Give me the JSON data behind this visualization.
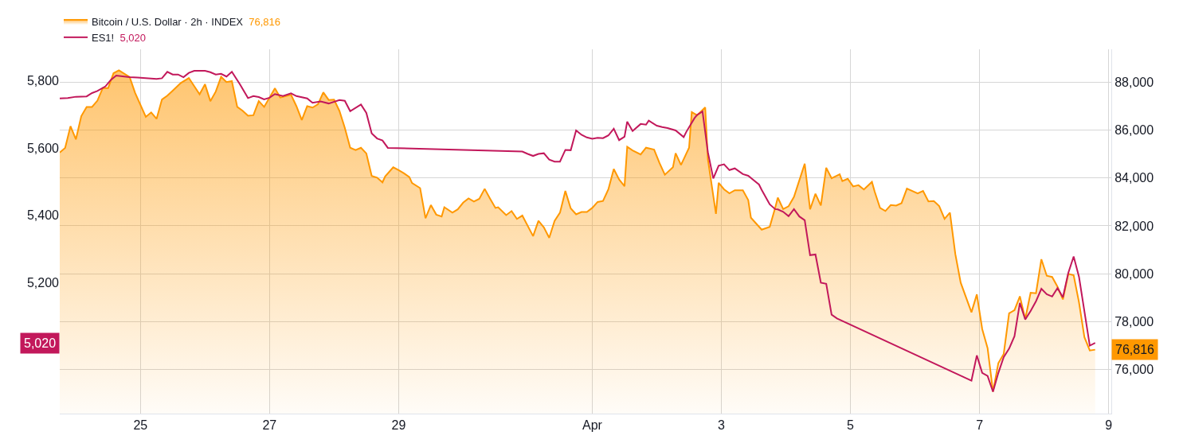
{
  "chart_data": {
    "type": "line",
    "xlim": [
      "--03-23T18:00",
      "--04-09T01:00"
    ],
    "xticks": [
      {
        "value": "--03-25",
        "label": "25"
      },
      {
        "value": "--03-27",
        "label": "27"
      },
      {
        "value": "--03-29",
        "label": "29"
      },
      {
        "value": "--04-01",
        "label": "Apr"
      },
      {
        "value": "--04-03",
        "label": "3"
      },
      {
        "value": "--04-05",
        "label": "5"
      },
      {
        "value": "--04-07",
        "label": "7"
      },
      {
        "value": "--04-09",
        "label": "9"
      }
    ],
    "ylim": [
      4810,
      5893
    ],
    "yticks": [
      {
        "value": 5200,
        "label": "5,200"
      },
      {
        "value": 5400,
        "label": "5,400"
      },
      {
        "value": 5600,
        "label": "5,600"
      },
      {
        "value": 5800,
        "label": "5,800"
      }
    ],
    "y2lim": [
      74140,
      89390
    ],
    "y2ticks": [
      {
        "value": 76000,
        "label": "76,000"
      },
      {
        "value": 78000,
        "label": "78,000"
      },
      {
        "value": 80000,
        "label": "80,000"
      },
      {
        "value": 82000,
        "label": "82,000"
      },
      {
        "value": 84000,
        "label": "84,000"
      },
      {
        "value": 86000,
        "label": "86,000"
      },
      {
        "value": 88000,
        "label": "88,000"
      }
    ],
    "grid": true,
    "legend": "top left",
    "annotations": [
      "76,816",
      "5,020"
    ],
    "series": [
      {
        "name": "Bitcoin / U.S. Dollar · 2h · INDEX",
        "type": "area",
        "axis": "y2",
        "color": "#ff9800",
        "x": [
          "--03-23T18:00",
          "--03-23T20:00",
          "--03-23T22:00",
          "--03-24T00:00",
          "--03-24T02:00",
          "--03-24T04:00",
          "--03-24T06:00",
          "--03-24T08:00",
          "--03-24T10:00",
          "--03-24T12:00",
          "--03-24T14:00",
          "--03-24T16:00",
          "--03-24T20:00",
          "--03-24T22:00",
          "--03-25T02:00",
          "--03-25T04:00",
          "--03-25T06:00",
          "--03-25T08:00",
          "--03-25T10:00",
          "--03-25T12:00",
          "--03-25T15:00",
          "--03-25T18:00",
          "--03-25T22:00",
          "--03-26T00:00",
          "--03-26T02:00",
          "--03-26T04:00",
          "--03-26T06:00",
          "--03-26T08:00",
          "--03-26T10:00",
          "--03-26T12:00",
          "--03-26T14:00",
          "--03-26T16:00",
          "--03-26T18:00",
          "--03-26T20:00",
          "--03-26T22:00",
          "--03-27T02:00",
          "--03-27T04:00",
          "--03-27T08:00",
          "--03-27T10:00",
          "--03-27T12:00",
          "--03-27T14:00",
          "--03-27T16:00",
          "--03-27T18:00",
          "--03-27T20:00",
          "--03-27T22:00",
          "--03-28T00:00",
          "--03-28T02:00",
          "--03-28T04:00",
          "--03-28T06:00",
          "--03-28T08:00",
          "--03-28T10:00",
          "--03-28T12:00",
          "--03-28T14:00",
          "--03-28T16:00",
          "--03-28T18:00",
          "--03-28T19:00",
          "--03-28T22:00",
          "--03-29T00:00",
          "--03-29T02:00",
          "--03-29T04:00",
          "--03-29T05:00",
          "--03-29T08:00",
          "--03-29T10:00",
          "--03-29T12:00",
          "--03-29T14:00",
          "--03-29T16:00",
          "--03-29T17:00",
          "--03-29T20:00",
          "--03-29T22:00",
          "--03-30T00:00",
          "--03-30T02:00",
          "--03-30T04:00",
          "--03-30T06:00",
          "--03-30T08:00",
          "--03-30T10:00",
          "--03-30T12:00",
          "--03-30T13:00",
          "--03-30T16:00",
          "--03-30T18:00",
          "--03-30T20:00",
          "--03-30T22:00",
          "--03-31T02:00",
          "--03-31T04:00",
          "--03-31T06:00",
          "--03-31T08:00",
          "--03-31T10:00",
          "--03-31T12:00",
          "--03-31T14:00",
          "--03-31T16:00",
          "--03-31T18:00",
          "--03-31T20:00",
          "--03-31T22:00",
          "--04-01T00:00",
          "--04-01T02:00",
          "--04-01T04:00",
          "--04-01T06:00",
          "--04-01T08:00",
          "--04-01T10:00",
          "--04-01T12:00",
          "--04-01T13:00",
          "--04-01T15:00",
          "--04-01T18:00",
          "--04-01T20:00",
          "--04-01T23:00",
          "--04-02T01:00",
          "--04-02T03:00",
          "--04-02T06:00",
          "--04-02T07:00",
          "--04-02T09:00",
          "--04-02T12:00",
          "--04-02T13:00",
          "--04-02T15:00",
          "--04-02T18:00",
          "--04-02T19:00",
          "--04-02T22:00",
          "--04-02T23:00",
          "--04-03T01:00",
          "--04-03T03:00",
          "--04-03T05:00",
          "--04-03T08:00",
          "--04-03T10:00",
          "--04-03T11:00",
          "--04-03T15:00",
          "--04-03T18:00",
          "--04-03T20:00",
          "--04-03T21:00",
          "--04-03T23:00",
          "--04-04T01:00",
          "--04-04T03:00",
          "--04-04T07:00",
          "--04-04T09:00",
          "--04-04T11:00",
          "--04-04T13:00",
          "--04-04T15:00",
          "--04-04T17:00",
          "--04-04T20:00",
          "--04-04T21:00",
          "--04-04T23:00",
          "--04-05T01:00",
          "--04-05T03:00",
          "--04-05T05:00",
          "--04-05T08:00",
          "--04-05T09:00",
          "--04-05T11:00",
          "--04-05T13:00",
          "--04-05T15:00",
          "--04-05T17:00",
          "--04-05T19:00",
          "--04-05T21:00",
          "--04-06T01:00",
          "--04-06T03:00",
          "--04-06T05:00",
          "--04-06T07:00",
          "--04-06T09:00",
          "--04-06T11:00",
          "--04-06T13:00",
          "--04-06T15:00",
          "--04-06T17:00",
          "--04-06T21:00",
          "--04-06T23:00",
          "--04-07T01:00",
          "--04-07T03:00",
          "--04-07T05:00",
          "--04-07T07:00",
          "--04-07T09:00",
          "--04-07T11:00",
          "--04-07T13:00",
          "--04-07T15:00",
          "--04-07T17:00",
          "--04-07T19:00",
          "--04-07T21:00",
          "--04-07T23:00",
          "--04-08T01:00",
          "--04-08T03:00",
          "--04-08T05:00",
          "--04-08T07:00",
          "--04-08T09:00",
          "--04-08T11:00",
          "--04-08T13:00",
          "--04-08T15:00",
          "--04-08T17:00",
          "--04-08T19:00"
        ],
        "values": [
          85070,
          85260,
          86170,
          85620,
          86590,
          86980,
          86980,
          87240,
          87770,
          87770,
          88390,
          88510,
          88230,
          87570,
          86560,
          86750,
          86480,
          87290,
          87450,
          87660,
          87980,
          88190,
          87510,
          87930,
          87220,
          87620,
          88240,
          88020,
          88060,
          86980,
          86820,
          86610,
          86630,
          87220,
          86980,
          87760,
          87370,
          87490,
          87010,
          86430,
          87010,
          86950,
          87090,
          87590,
          87270,
          87280,
          86810,
          86100,
          85270,
          85170,
          85270,
          85030,
          84090,
          84020,
          83820,
          84070,
          84450,
          84330,
          84200,
          84040,
          83790,
          83580,
          82320,
          82870,
          82470,
          82390,
          82780,
          82550,
          82690,
          82970,
          83150,
          83020,
          83130,
          83550,
          83140,
          82750,
          82780,
          82450,
          82620,
          82290,
          82430,
          81570,
          82210,
          81940,
          81500,
          82210,
          82550,
          83460,
          82730,
          82480,
          82580,
          82580,
          82750,
          83000,
          83040,
          83530,
          84380,
          83940,
          83660,
          85310,
          85160,
          84990,
          85270,
          85190,
          84630,
          84140,
          84450,
          85040,
          84550,
          85270,
          86760,
          86630,
          86960,
          84780,
          82500,
          83800,
          83530,
          83360,
          83490,
          83490,
          83080,
          82340,
          81840,
          81960,
          82750,
          83180,
          82700,
          82820,
          83210,
          84600,
          82690,
          83340,
          82850,
          84430,
          83990,
          84160,
          83870,
          83970,
          83650,
          83700,
          83520,
          83840,
          83440,
          82750,
          82620,
          82870,
          82850,
          82950,
          83560,
          83360,
          83460,
          83020,
          83040,
          82830,
          82290,
          82550,
          80820,
          79620,
          78380,
          79130,
          77680,
          76880,
          75060,
          76250,
          76640,
          78340,
          78470,
          79050,
          78100,
          79200,
          79180,
          80600,
          79910,
          79860,
          79450,
          78920,
          79990,
          79930,
          78790,
          77340,
          76780,
          76816
        ]
      },
      {
        "name": "ES1!",
        "color": "#c2185b",
        "x": [
          "--03-23T18:00",
          "--03-23T21:00",
          "--03-24T00:00",
          "--03-24T04:00",
          "--03-24T06:00",
          "--03-24T08:00",
          "--03-24T11:00",
          "--03-24T13:00",
          "--03-24T15:00",
          "--03-24T18:00",
          "--03-24T20:00",
          "--03-24T23:00",
          "--03-25T02:00",
          "--03-25T06:00",
          "--03-25T08:00",
          "--03-25T10:00",
          "--03-25T12:00",
          "--03-25T14:00",
          "--03-25T16:00",
          "--03-25T18:00",
          "--03-25T20:00",
          "--03-26T00:00",
          "--03-26T02:00",
          "--03-26T04:00",
          "--03-26T06:00",
          "--03-26T08:00",
          "--03-26T10:00",
          "--03-26T13:00",
          "--03-26T16:00",
          "--03-26T18:00",
          "--03-26T20:00",
          "--03-26T22:00",
          "--03-27T00:00",
          "--03-27T02:00",
          "--03-27T05:00",
          "--03-27T08:00",
          "--03-27T10:00",
          "--03-27T14:00",
          "--03-27T16:00",
          "--03-27T19:00",
          "--03-27T22:00",
          "--03-28T02:00",
          "--03-28T04:00",
          "--03-28T06:00",
          "--03-28T10:00",
          "--03-28T12:00",
          "--03-28T14:00",
          "--03-28T16:00",
          "--03-28T18:00",
          "--03-28T20:00",
          "--03-30T22:00",
          "--03-31T00:00",
          "--03-31T02:00",
          "--03-31T04:00",
          "--03-31T06:00",
          "--03-31T08:00",
          "--03-31T10:00",
          "--03-31T12:00",
          "--03-31T14:00",
          "--03-31T16:00",
          "--03-31T18:00",
          "--03-31T20:00",
          "--03-31T22:00",
          "--04-01T00:00",
          "--04-01T02:00",
          "--04-01T04:00",
          "--04-01T06:00",
          "--04-01T08:00",
          "--04-01T10:00",
          "--04-01T12:00",
          "--04-01T13:00",
          "--04-01T15:00",
          "--04-01T18:00",
          "--04-01T20:00",
          "--04-01T21:00",
          "--04-02T00:00",
          "--04-02T02:00",
          "--04-02T04:00",
          "--04-02T07:00",
          "--04-02T10:00",
          "--04-02T11:00",
          "--04-02T14:00",
          "--04-02T15:00",
          "--04-02T17:00",
          "--04-02T19:00",
          "--04-02T21:00",
          "--04-02T23:00",
          "--04-03T01:00",
          "--04-03T03:00",
          "--04-03T05:00",
          "--04-03T08:00",
          "--04-03T10:00",
          "--04-03T12:00",
          "--04-03T14:00",
          "--04-03T15:00",
          "--04-03T18:00",
          "--04-03T20:00",
          "--04-03T21:00",
          "--04-03T23:00",
          "--04-04T01:00",
          "--04-04T03:00",
          "--04-04T05:00",
          "--04-04T07:00",
          "--04-04T09:00",
          "--04-04T11:00",
          "--04-04T13:00",
          "--04-04T15:00",
          "--04-04T17:00",
          "--04-04T19:00",
          "--04-06T21:00",
          "--04-06T23:00",
          "--04-07T01:00",
          "--04-07T03:00",
          "--04-07T05:00",
          "--04-07T07:00",
          "--04-07T09:00",
          "--04-07T11:00",
          "--04-07T13:00",
          "--04-07T15:00",
          "--04-07T17:00",
          "--04-07T19:00",
          "--04-07T21:00",
          "--04-07T23:00",
          "--04-08T01:00",
          "--04-08T03:00",
          "--04-08T05:00",
          "--04-08T07:00",
          "--04-08T09:00",
          "--04-08T11:00",
          "--04-08T13:00",
          "--04-08T17:00",
          "--04-08T19:00"
        ],
        "values": [
          5747,
          5748,
          5752,
          5753,
          5763,
          5769,
          5783,
          5802,
          5815,
          5812,
          5810,
          5809,
          5807,
          5805,
          5807,
          5826,
          5818,
          5818,
          5810,
          5823,
          5829,
          5829,
          5825,
          5818,
          5820,
          5812,
          5826,
          5789,
          5748,
          5754,
          5751,
          5744,
          5749,
          5760,
          5754,
          5762,
          5754,
          5747,
          5734,
          5738,
          5732,
          5742,
          5740,
          5709,
          5729,
          5704,
          5643,
          5628,
          5622,
          5600,
          5589,
          5582,
          5576,
          5582,
          5584,
          5565,
          5559,
          5559,
          5594,
          5593,
          5652,
          5639,
          5631,
          5627,
          5630,
          5629,
          5637,
          5657,
          5623,
          5633,
          5678,
          5650,
          5671,
          5669,
          5681,
          5666,
          5662,
          5659,
          5652,
          5632,
          5648,
          5688,
          5698,
          5708,
          5587,
          5509,
          5547,
          5551,
          5534,
          5539,
          5522,
          5517,
          5504,
          5491,
          5475,
          5432,
          5418,
          5417,
          5410,
          5397,
          5418,
          5396,
          5385,
          5281,
          5283,
          5199,
          5196,
          5104,
          5093,
          4908,
          4983,
          4931,
          4922,
          4875,
          4931,
          4978,
          5003,
          5040,
          5139,
          5090,
          5115,
          5144,
          5181,
          5165,
          5158,
          5183,
          5156,
          5228,
          5277,
          5216,
          5012,
          5020
        ]
      }
    ]
  }
}
